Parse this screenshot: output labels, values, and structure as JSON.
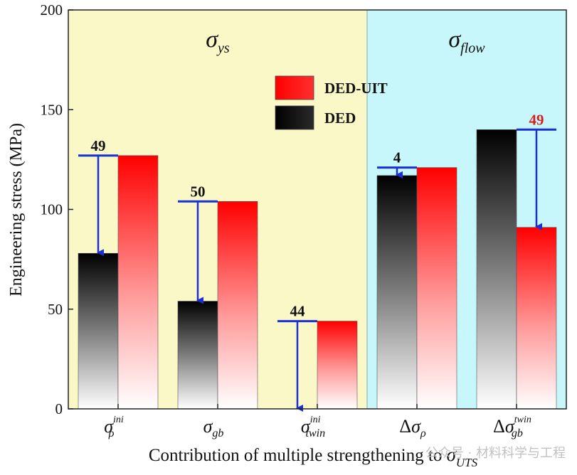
{
  "chart_data": {
    "type": "bar",
    "categories": [
      "σ_ρ^ini",
      "σ_gb",
      "σ_twin^ini",
      "Δσ_ρ",
      "Δσ_gb^twin"
    ],
    "category_labels": [
      {
        "prefix": "",
        "base": "σ",
        "sub": "ρ",
        "sup": "ini"
      },
      {
        "prefix": "",
        "base": "σ",
        "sub": "gb",
        "sup": ""
      },
      {
        "prefix": "",
        "base": "σ",
        "sub": "twin",
        "sup": "ini"
      },
      {
        "prefix": "Δ",
        "base": "σ",
        "sub": "ρ",
        "sup": ""
      },
      {
        "prefix": "Δ",
        "base": "σ",
        "sub": "gb",
        "sup": "twin"
      }
    ],
    "series": [
      {
        "name": "DED",
        "values": [
          78,
          54,
          0,
          117,
          140
        ]
      },
      {
        "name": "DED-UIT",
        "values": [
          127,
          104,
          44,
          121,
          91
        ]
      }
    ],
    "annotations": [
      {
        "text": "49",
        "category": 0,
        "from": 127,
        "to": 78,
        "label_color": "#111111"
      },
      {
        "text": "50",
        "category": 1,
        "from": 104,
        "to": 54,
        "label_color": "#111111"
      },
      {
        "text": "44",
        "category": 2,
        "from": 44,
        "to": 0,
        "label_color": "#111111"
      },
      {
        "text": "4",
        "category": 3,
        "from": 121,
        "to": 117,
        "label_color": "#111111"
      },
      {
        "text": "49",
        "category": 4,
        "from": 140,
        "to": 91,
        "label_color": "#d42020"
      }
    ],
    "regions": [
      {
        "label_base": "σ",
        "label_sub": "ys",
        "x_range": [
          0,
          3
        ],
        "color": "#fbf8c8"
      },
      {
        "label_base": "σ",
        "label_sub": "flow",
        "x_range": [
          3,
          5
        ],
        "color": "#c8f7fb"
      }
    ],
    "ylabel": "Engineering stress (MPa)",
    "xlabel_text": "Contribution of multiple strengthening to ",
    "xlabel_base": "σ",
    "xlabel_sub": "UTS",
    "ylim": [
      0,
      200
    ],
    "yticks": [
      0,
      50,
      100,
      150,
      200
    ],
    "legend_placement": "top-center",
    "colors": {
      "DED": "#000000",
      "DED-UIT": "#ff0000",
      "arrow": "#1a2fd6",
      "divider": "#9ec4c8"
    }
  },
  "watermark": "公众号 · 材料科学与工程"
}
